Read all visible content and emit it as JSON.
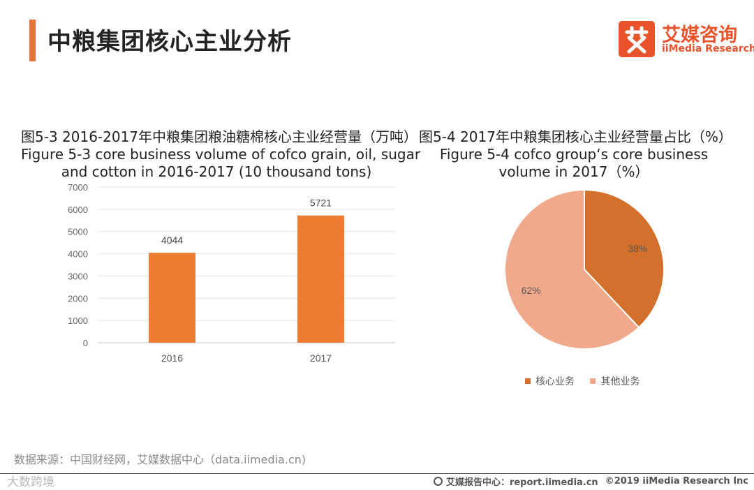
{
  "header": {
    "title": "中粮集团核心主业分析",
    "logo_icon": "艾",
    "logo_cn": "艾媒咨询",
    "logo_en": "iiMedia Research"
  },
  "colors": {
    "accent": "#e8743b",
    "bar": "#ed7d31",
    "pie_core": "#d2702c",
    "pie_other": "#f0a98a",
    "logo": "#e8532b"
  },
  "chart_data": [
    {
      "type": "bar",
      "title_cn": "图5-3 2016-2017年中粮集团粮油糖棉核心主业经营量（万吨）",
      "title_en_line1": "Figure 5-3 core business volume of cofco grain, oil, sugar",
      "title_en_line2": "and cotton in 2016-2017 (10 thousand tons)",
      "categories": [
        "2016",
        "2017"
      ],
      "values": [
        4044,
        5721
      ],
      "ylim": [
        0,
        7000
      ],
      "yticks": [
        "0",
        "1000",
        "2000",
        "3000",
        "4000",
        "5000",
        "6000",
        "7000"
      ],
      "xlabel": "",
      "ylabel": "",
      "grid": true,
      "data_labels": [
        "4044",
        "5721"
      ]
    },
    {
      "type": "pie",
      "title_cn": "图5-4 2017年中粮集团核心主业经营量占比（%）",
      "title_en_line1": "Figure 5-4 cofco group‘s core business",
      "title_en_line2": "volume in 2017（%）",
      "labels": [
        "核心业务",
        "其他业务"
      ],
      "values": [
        38,
        62
      ],
      "data_labels": [
        "38%",
        "62%"
      ],
      "legend_position": "bottom"
    }
  ],
  "footer": {
    "source": "数据来源：中国财经网，艾媒数据中心（data.iimedia.cn)",
    "watermark": "大数跨境",
    "report_center": "艾媒报告中心：report.iimedia.cn",
    "copyright": "©2019  iiMedia Research  Inc"
  }
}
